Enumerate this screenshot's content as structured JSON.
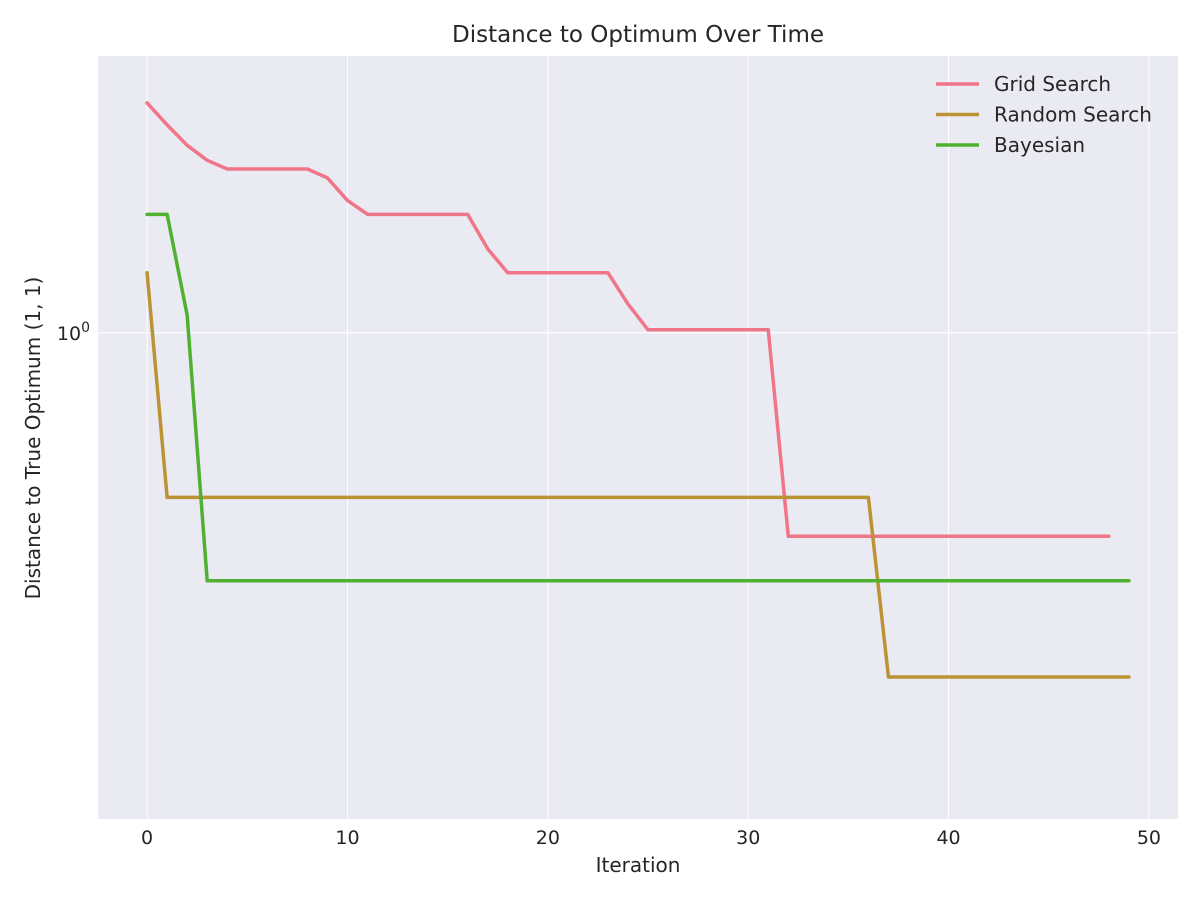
{
  "chart_data": {
    "type": "line",
    "title": "Distance to Optimum Over Time",
    "xlabel": "Iteration",
    "ylabel": "Distance to True Optimum (1, 1)",
    "yscale": "log",
    "xlim": [
      -2.45,
      51.45
    ],
    "ylim": [
      0.2,
      2.5
    ],
    "xticks": [
      0,
      10,
      20,
      30,
      40,
      50
    ],
    "yticks": [
      {
        "value": 1,
        "base": "10",
        "exp": "0"
      }
    ],
    "grid": true,
    "legend": "top-right",
    "series": [
      {
        "name": "Grid Search",
        "color": "#f07589",
        "x": [
          0,
          1,
          2,
          3,
          4,
          5,
          6,
          7,
          8,
          9,
          10,
          11,
          12,
          13,
          14,
          15,
          16,
          17,
          18,
          19,
          20,
          21,
          22,
          23,
          24,
          25,
          26,
          27,
          28,
          29,
          30,
          31,
          32,
          33,
          34,
          35,
          36,
          37,
          38,
          39,
          40,
          41,
          42,
          43,
          44,
          45,
          46,
          47,
          48
        ],
        "y": [
          2.14,
          1.99,
          1.86,
          1.77,
          1.72,
          1.72,
          1.72,
          1.72,
          1.72,
          1.67,
          1.55,
          1.48,
          1.48,
          1.48,
          1.48,
          1.48,
          1.48,
          1.32,
          1.22,
          1.22,
          1.22,
          1.22,
          1.22,
          1.22,
          1.1,
          1.01,
          1.01,
          1.01,
          1.01,
          1.01,
          1.01,
          1.01,
          0.51,
          0.51,
          0.51,
          0.51,
          0.51,
          0.51,
          0.51,
          0.51,
          0.51,
          0.51,
          0.51,
          0.51,
          0.51,
          0.51,
          0.51,
          0.51,
          0.51
        ]
      },
      {
        "name": "Random Search",
        "color": "#bb9334",
        "x": [
          0,
          1,
          2,
          3,
          4,
          5,
          6,
          7,
          8,
          9,
          10,
          11,
          12,
          13,
          14,
          15,
          16,
          17,
          18,
          19,
          20,
          21,
          22,
          23,
          24,
          25,
          26,
          27,
          28,
          29,
          30,
          31,
          32,
          33,
          34,
          35,
          36,
          37,
          38,
          39,
          40,
          41,
          42,
          43,
          44,
          45,
          46,
          47,
          48,
          49
        ],
        "y": [
          1.22,
          0.58,
          0.58,
          0.58,
          0.58,
          0.58,
          0.58,
          0.58,
          0.58,
          0.58,
          0.58,
          0.58,
          0.58,
          0.58,
          0.58,
          0.58,
          0.58,
          0.58,
          0.58,
          0.58,
          0.58,
          0.58,
          0.58,
          0.58,
          0.58,
          0.58,
          0.58,
          0.58,
          0.58,
          0.58,
          0.58,
          0.58,
          0.58,
          0.58,
          0.58,
          0.58,
          0.58,
          0.32,
          0.32,
          0.32,
          0.32,
          0.32,
          0.32,
          0.32,
          0.32,
          0.32,
          0.32,
          0.32,
          0.32,
          0.32
        ]
      },
      {
        "name": "Bayesian",
        "color": "#50b131",
        "x": [
          0,
          1,
          2,
          3,
          4,
          5,
          6,
          7,
          8,
          9,
          10,
          11,
          12,
          13,
          14,
          15,
          16,
          17,
          18,
          19,
          20,
          21,
          22,
          23,
          24,
          25,
          26,
          27,
          28,
          29,
          30,
          31,
          32,
          33,
          34,
          35,
          36,
          37,
          38,
          39,
          40,
          41,
          42,
          43,
          44,
          45,
          46,
          47,
          48,
          49
        ],
        "y": [
          1.48,
          1.48,
          1.06,
          0.44,
          0.44,
          0.44,
          0.44,
          0.44,
          0.44,
          0.44,
          0.44,
          0.44,
          0.44,
          0.44,
          0.44,
          0.44,
          0.44,
          0.44,
          0.44,
          0.44,
          0.44,
          0.44,
          0.44,
          0.44,
          0.44,
          0.44,
          0.44,
          0.44,
          0.44,
          0.44,
          0.44,
          0.44,
          0.44,
          0.44,
          0.44,
          0.44,
          0.44,
          0.44,
          0.44,
          0.44,
          0.44,
          0.44,
          0.44,
          0.44,
          0.44,
          0.44,
          0.44,
          0.44,
          0.44,
          0.44
        ]
      }
    ]
  }
}
